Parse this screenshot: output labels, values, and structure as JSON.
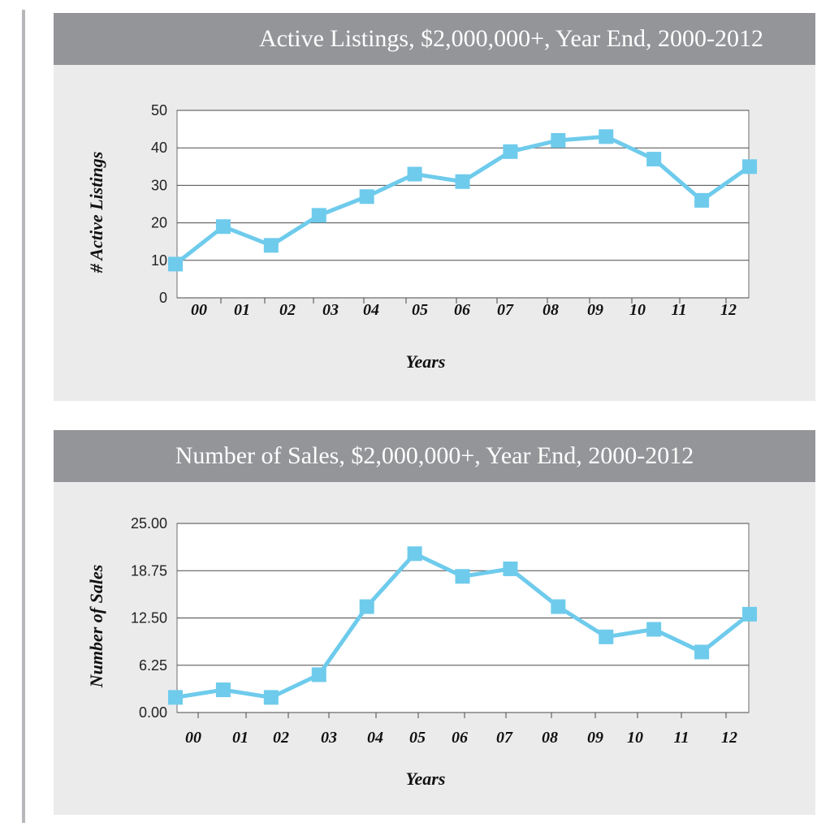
{
  "style": {
    "line_color": "#6ecbec",
    "panel_bg": "#ebebec",
    "header_bg": "#939598",
    "header_text": "#ffffff"
  },
  "chart_data": [
    {
      "type": "line",
      "title": "Active Listings, $2,000,000+, Year End, 2000-2012",
      "xlabel": "Years",
      "ylabel": "# Active Listings",
      "categories": [
        "00",
        "01",
        "02",
        "03",
        "04",
        "05",
        "06",
        "07",
        "08",
        "09",
        "10",
        "11",
        "12"
      ],
      "values": [
        9,
        19,
        14,
        22,
        27,
        33,
        31,
        39,
        42,
        43,
        37,
        26,
        35
      ],
      "ylim": [
        0,
        50
      ],
      "yticks": [
        "0",
        "10",
        "20",
        "30",
        "40",
        "50"
      ],
      "grid": true
    },
    {
      "type": "line",
      "title": "Number of Sales, $2,000,000+, Year End, 2000-2012",
      "xlabel": "Years",
      "ylabel": "Number of Sales",
      "categories": [
        "00",
        "01",
        "02",
        "03",
        "04",
        "05",
        "06",
        "07",
        "08",
        "09",
        "10",
        "11",
        "12"
      ],
      "values": [
        2,
        3,
        2,
        5,
        14,
        21,
        18,
        19,
        14,
        10,
        11,
        8,
        13
      ],
      "ylim": [
        0,
        25
      ],
      "yticks": [
        "0.00",
        "6.25",
        "12.50",
        "18.75",
        "25.00"
      ],
      "grid": true
    }
  ]
}
